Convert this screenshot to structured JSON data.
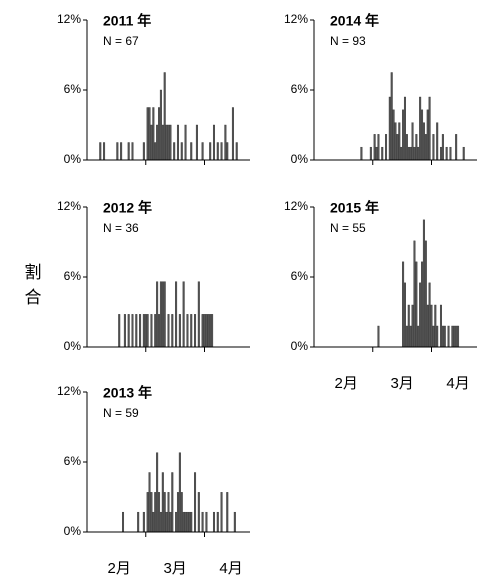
{
  "ylabel": "割合",
  "chart_data": [
    {
      "type": "bar",
      "title": "2011 年",
      "note": "N = 67",
      "xlim": [
        -3,
        83
      ],
      "month_boundaries": [
        28,
        59
      ],
      "ylim": [
        0,
        12
      ],
      "yticks": [
        {
          "value": 0,
          "label": "0%"
        },
        {
          "value": 6,
          "label": "6%"
        },
        {
          "value": 12,
          "label": "12%"
        }
      ],
      "color": "#555555",
      "x": [
        4,
        6,
        13,
        15,
        19,
        21,
        27,
        29,
        30,
        31,
        32,
        33,
        34,
        35,
        36,
        37,
        38,
        39,
        40,
        41,
        43,
        45,
        47,
        49,
        52,
        55,
        58,
        62,
        64,
        66,
        68,
        70,
        71,
        74,
        76
      ],
      "values": [
        1.5,
        1.5,
        1.5,
        1.5,
        1.5,
        1.5,
        1.5,
        4.5,
        4.5,
        3,
        4.5,
        1.5,
        3,
        4.5,
        6,
        3,
        7.5,
        3,
        3,
        3,
        1.5,
        3,
        1.5,
        3,
        1.5,
        3,
        1.5,
        1.5,
        3,
        1.5,
        1.5,
        3,
        1.5,
        4.5,
        1.5
      ]
    },
    {
      "type": "bar",
      "title": "2014 年",
      "note": "N = 93",
      "xlim": [
        -3,
        83
      ],
      "month_boundaries": [
        28,
        59
      ],
      "ylim": [
        0,
        12
      ],
      "yticks": [
        {
          "value": 0,
          "label": "0%"
        },
        {
          "value": 6,
          "label": "6%"
        },
        {
          "value": 12,
          "label": "12%"
        }
      ],
      "color": "#555555",
      "x": [
        22,
        27,
        29,
        30,
        31,
        33,
        35,
        37,
        38,
        39,
        40,
        41,
        42,
        43,
        44,
        45,
        46,
        47,
        48,
        49,
        50,
        51,
        52,
        53,
        54,
        55,
        56,
        57,
        58,
        60,
        62,
        64,
        65,
        67,
        69,
        72,
        76
      ],
      "values": [
        1.1,
        1.1,
        2.2,
        1.1,
        2.2,
        1.1,
        2.2,
        5.4,
        7.5,
        4.3,
        3.2,
        2.2,
        3.2,
        1.1,
        4.3,
        5.4,
        2.2,
        1.1,
        1.1,
        3.2,
        1.1,
        2.2,
        1.1,
        5.4,
        4.3,
        3.2,
        2.2,
        4.3,
        5.4,
        2.2,
        3.2,
        1.1,
        2.2,
        1.1,
        1.1,
        2.2,
        1.1
      ]
    },
    {
      "type": "bar",
      "title": "2012 年",
      "note": "N = 36",
      "xlim": [
        -3,
        83
      ],
      "month_boundaries": [
        28,
        59
      ],
      "ylim": [
        0,
        12
      ],
      "yticks": [
        {
          "value": 0,
          "label": "0%"
        },
        {
          "value": 6,
          "label": "6%"
        },
        {
          "value": 12,
          "label": "12%"
        }
      ],
      "color": "#555555",
      "x": [
        14,
        17,
        19,
        21,
        23,
        25,
        27,
        28,
        29,
        31,
        33,
        34,
        35,
        36,
        37,
        38,
        40,
        42,
        44,
        46,
        48,
        50,
        52,
        54,
        56,
        58,
        59,
        60,
        61,
        62,
        63
      ],
      "values": [
        2.8,
        2.8,
        2.8,
        2.8,
        2.8,
        2.8,
        2.8,
        2.8,
        2.8,
        2.8,
        2.8,
        5.6,
        2.8,
        5.6,
        5.6,
        5.6,
        2.8,
        2.8,
        5.6,
        2.8,
        5.6,
        2.8,
        2.8,
        2.8,
        5.6,
        2.8,
        2.8,
        2.8,
        2.8,
        2.8,
        2.8
      ]
    },
    {
      "type": "bar",
      "title": "2015 年",
      "note": "N = 55",
      "xlim": [
        -3,
        83
      ],
      "month_boundaries": [
        28,
        59
      ],
      "month_labels": [
        {
          "value": 14,
          "label": "2月"
        },
        {
          "value": 43.5,
          "label": "3月"
        },
        {
          "value": 73,
          "label": "4月"
        }
      ],
      "ylim": [
        0,
        12
      ],
      "yticks": [
        {
          "value": 0,
          "label": "0%"
        },
        {
          "value": 6,
          "label": "6%"
        },
        {
          "value": 12,
          "label": "12%"
        }
      ],
      "color": "#555555",
      "x": [
        31,
        44,
        45,
        46,
        47,
        48,
        49,
        50,
        51,
        52,
        53,
        54,
        55,
        56,
        57,
        58,
        59,
        60,
        61,
        62,
        64,
        65,
        66,
        68,
        70,
        71,
        72,
        73
      ],
      "values": [
        1.8,
        7.3,
        5.5,
        1.8,
        3.6,
        1.8,
        3.6,
        9.1,
        7.3,
        1.8,
        5.5,
        7.3,
        10.9,
        9.1,
        3.6,
        5.5,
        3.6,
        1.8,
        3.6,
        1.8,
        3.6,
        1.8,
        1.8,
        1.8,
        1.8,
        1.8,
        1.8,
        1.8
      ]
    },
    {
      "type": "bar",
      "title": "2013 年",
      "note": "N = 59",
      "xlim": [
        -3,
        83
      ],
      "month_boundaries": [
        28,
        59
      ],
      "month_labels": [
        {
          "value": 14,
          "label": "2月"
        },
        {
          "value": 43.5,
          "label": "3月"
        },
        {
          "value": 73,
          "label": "4月"
        }
      ],
      "ylim": [
        0,
        12
      ],
      "yticks": [
        {
          "value": 0,
          "label": "0%"
        },
        {
          "value": 6,
          "label": "6%"
        },
        {
          "value": 12,
          "label": "12%"
        }
      ],
      "color": "#555555",
      "x": [
        16,
        24,
        27,
        29,
        30,
        31,
        32,
        33,
        34,
        35,
        36,
        37,
        38,
        39,
        40,
        41,
        42,
        44,
        45,
        46,
        47,
        48,
        49,
        50,
        51,
        52,
        54,
        56,
        58,
        60,
        64,
        66,
        68,
        71,
        75
      ],
      "values": [
        1.7,
        1.7,
        1.7,
        3.4,
        5.1,
        3.4,
        1.7,
        3.4,
        6.8,
        3.4,
        1.7,
        5.1,
        3.4,
        1.7,
        3.4,
        1.7,
        5.1,
        1.7,
        3.4,
        6.8,
        3.4,
        1.7,
        1.7,
        1.7,
        1.7,
        1.7,
        5.1,
        3.4,
        1.7,
        1.7,
        1.7,
        1.7,
        3.4,
        3.4,
        1.7
      ]
    }
  ]
}
